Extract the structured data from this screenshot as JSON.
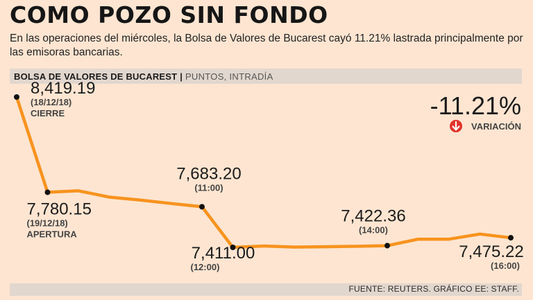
{
  "title": "COMO POZO SIN FONDO",
  "subtitle": "En las operaciones del miércoles, la Bolsa de Valores de Bucarest cayó 11.21% lastrada principalmente por las emisoras bancarias.",
  "header": {
    "main": "BOLSA DE VALORES DE BUCAREST",
    "separator": "|",
    "secondary": "PUNTOS, INTRADÍA"
  },
  "footer": "FUENTE: REUTERS. GRÁFICO EE: STAFF.",
  "variation": {
    "value": "-11.21%",
    "label": "VARIACIÓN",
    "icon": "down-arrow-circle-icon",
    "color": "#e0332b"
  },
  "colors": {
    "line": "#f7931e",
    "marker": "#111111"
  },
  "chart_data": {
    "type": "line",
    "series": [
      {
        "values": [
          8419.19,
          7780.15,
          7790,
          7748,
          7728,
          7705,
          7683.2,
          7411.0,
          7420,
          7413,
          7415,
          7418,
          7422.36,
          7466,
          7466,
          7500,
          7475.22
        ]
      }
    ],
    "annotations": [
      {
        "index": 0,
        "value": "8,419.19",
        "lines": [
          "(18/12/18)",
          "CIERRE"
        ]
      },
      {
        "index": 1,
        "value": "7,780.15",
        "lines": [
          "(19/12/18)",
          "APERTURA"
        ]
      },
      {
        "index": 6,
        "value": "7,683.20",
        "lines": [
          "(11:00)"
        ]
      },
      {
        "index": 7,
        "value": "7,411.00",
        "lines": [
          "(12:00)"
        ]
      },
      {
        "index": 12,
        "value": "7,422.36",
        "lines": [
          "(14:00)"
        ]
      },
      {
        "index": 16,
        "value": "7,475.22",
        "lines": [
          "(16:00)"
        ]
      }
    ]
  }
}
